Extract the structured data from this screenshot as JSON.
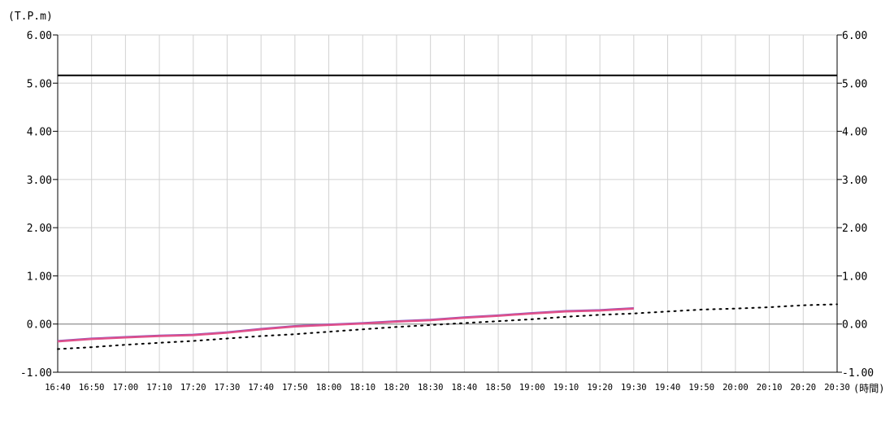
{
  "chart_data": {
    "type": "line",
    "y_unit": "(T.P.m)",
    "x_unit": "(時間)",
    "ylim": [
      -1.0,
      6.0
    ],
    "y_ticks": [
      "6.00",
      "5.00",
      "4.00",
      "3.00",
      "2.00",
      "1.00",
      "0.00",
      "-1.00"
    ],
    "y_tick_values": [
      6,
      5,
      4,
      3,
      2,
      1,
      0,
      -1
    ],
    "x_ticks": [
      "16:40",
      "16:50",
      "17:00",
      "17:10",
      "17:20",
      "17:30",
      "17:40",
      "17:50",
      "18:00",
      "18:10",
      "18:20",
      "18:30",
      "18:40",
      "18:50",
      "19:00",
      "19:10",
      "19:20",
      "19:30",
      "19:40",
      "19:50",
      "20:00",
      "20:10",
      "20:20",
      "20:30"
    ],
    "grid": true,
    "reference_line": {
      "value": 5.16,
      "color": "#000000"
    },
    "zero_line": {
      "value": 0.0,
      "color": "#808080"
    },
    "series": [
      {
        "style": "solid",
        "color": "#e0508a",
        "x": [
          "16:40",
          "16:50",
          "17:00",
          "17:10",
          "17:20",
          "17:30",
          "17:40",
          "17:50",
          "18:00",
          "18:10",
          "18:20",
          "18:30",
          "18:40",
          "18:50",
          "19:00",
          "19:10",
          "19:20",
          "19:30"
        ],
        "values": [
          -0.36,
          -0.31,
          -0.28,
          -0.25,
          -0.23,
          -0.18,
          -0.11,
          -0.05,
          -0.02,
          0.01,
          0.05,
          0.08,
          0.13,
          0.17,
          0.22,
          0.26,
          0.28,
          0.32
        ]
      },
      {
        "style": "dotted",
        "color": "#000000",
        "x": [
          "16:40",
          "16:50",
          "17:00",
          "17:10",
          "17:20",
          "17:30",
          "17:40",
          "17:50",
          "18:00",
          "18:10",
          "18:20",
          "18:30",
          "18:40",
          "18:50",
          "19:00",
          "19:10",
          "19:20",
          "19:30",
          "19:40",
          "19:50",
          "20:00",
          "20:10",
          "20:20",
          "20:30"
        ],
        "values": [
          -0.52,
          -0.48,
          -0.43,
          -0.39,
          -0.35,
          -0.3,
          -0.25,
          -0.21,
          -0.16,
          -0.11,
          -0.06,
          -0.02,
          0.02,
          0.06,
          0.1,
          0.15,
          0.19,
          0.22,
          0.26,
          0.3,
          0.32,
          0.35,
          0.39,
          0.41
        ]
      }
    ]
  }
}
